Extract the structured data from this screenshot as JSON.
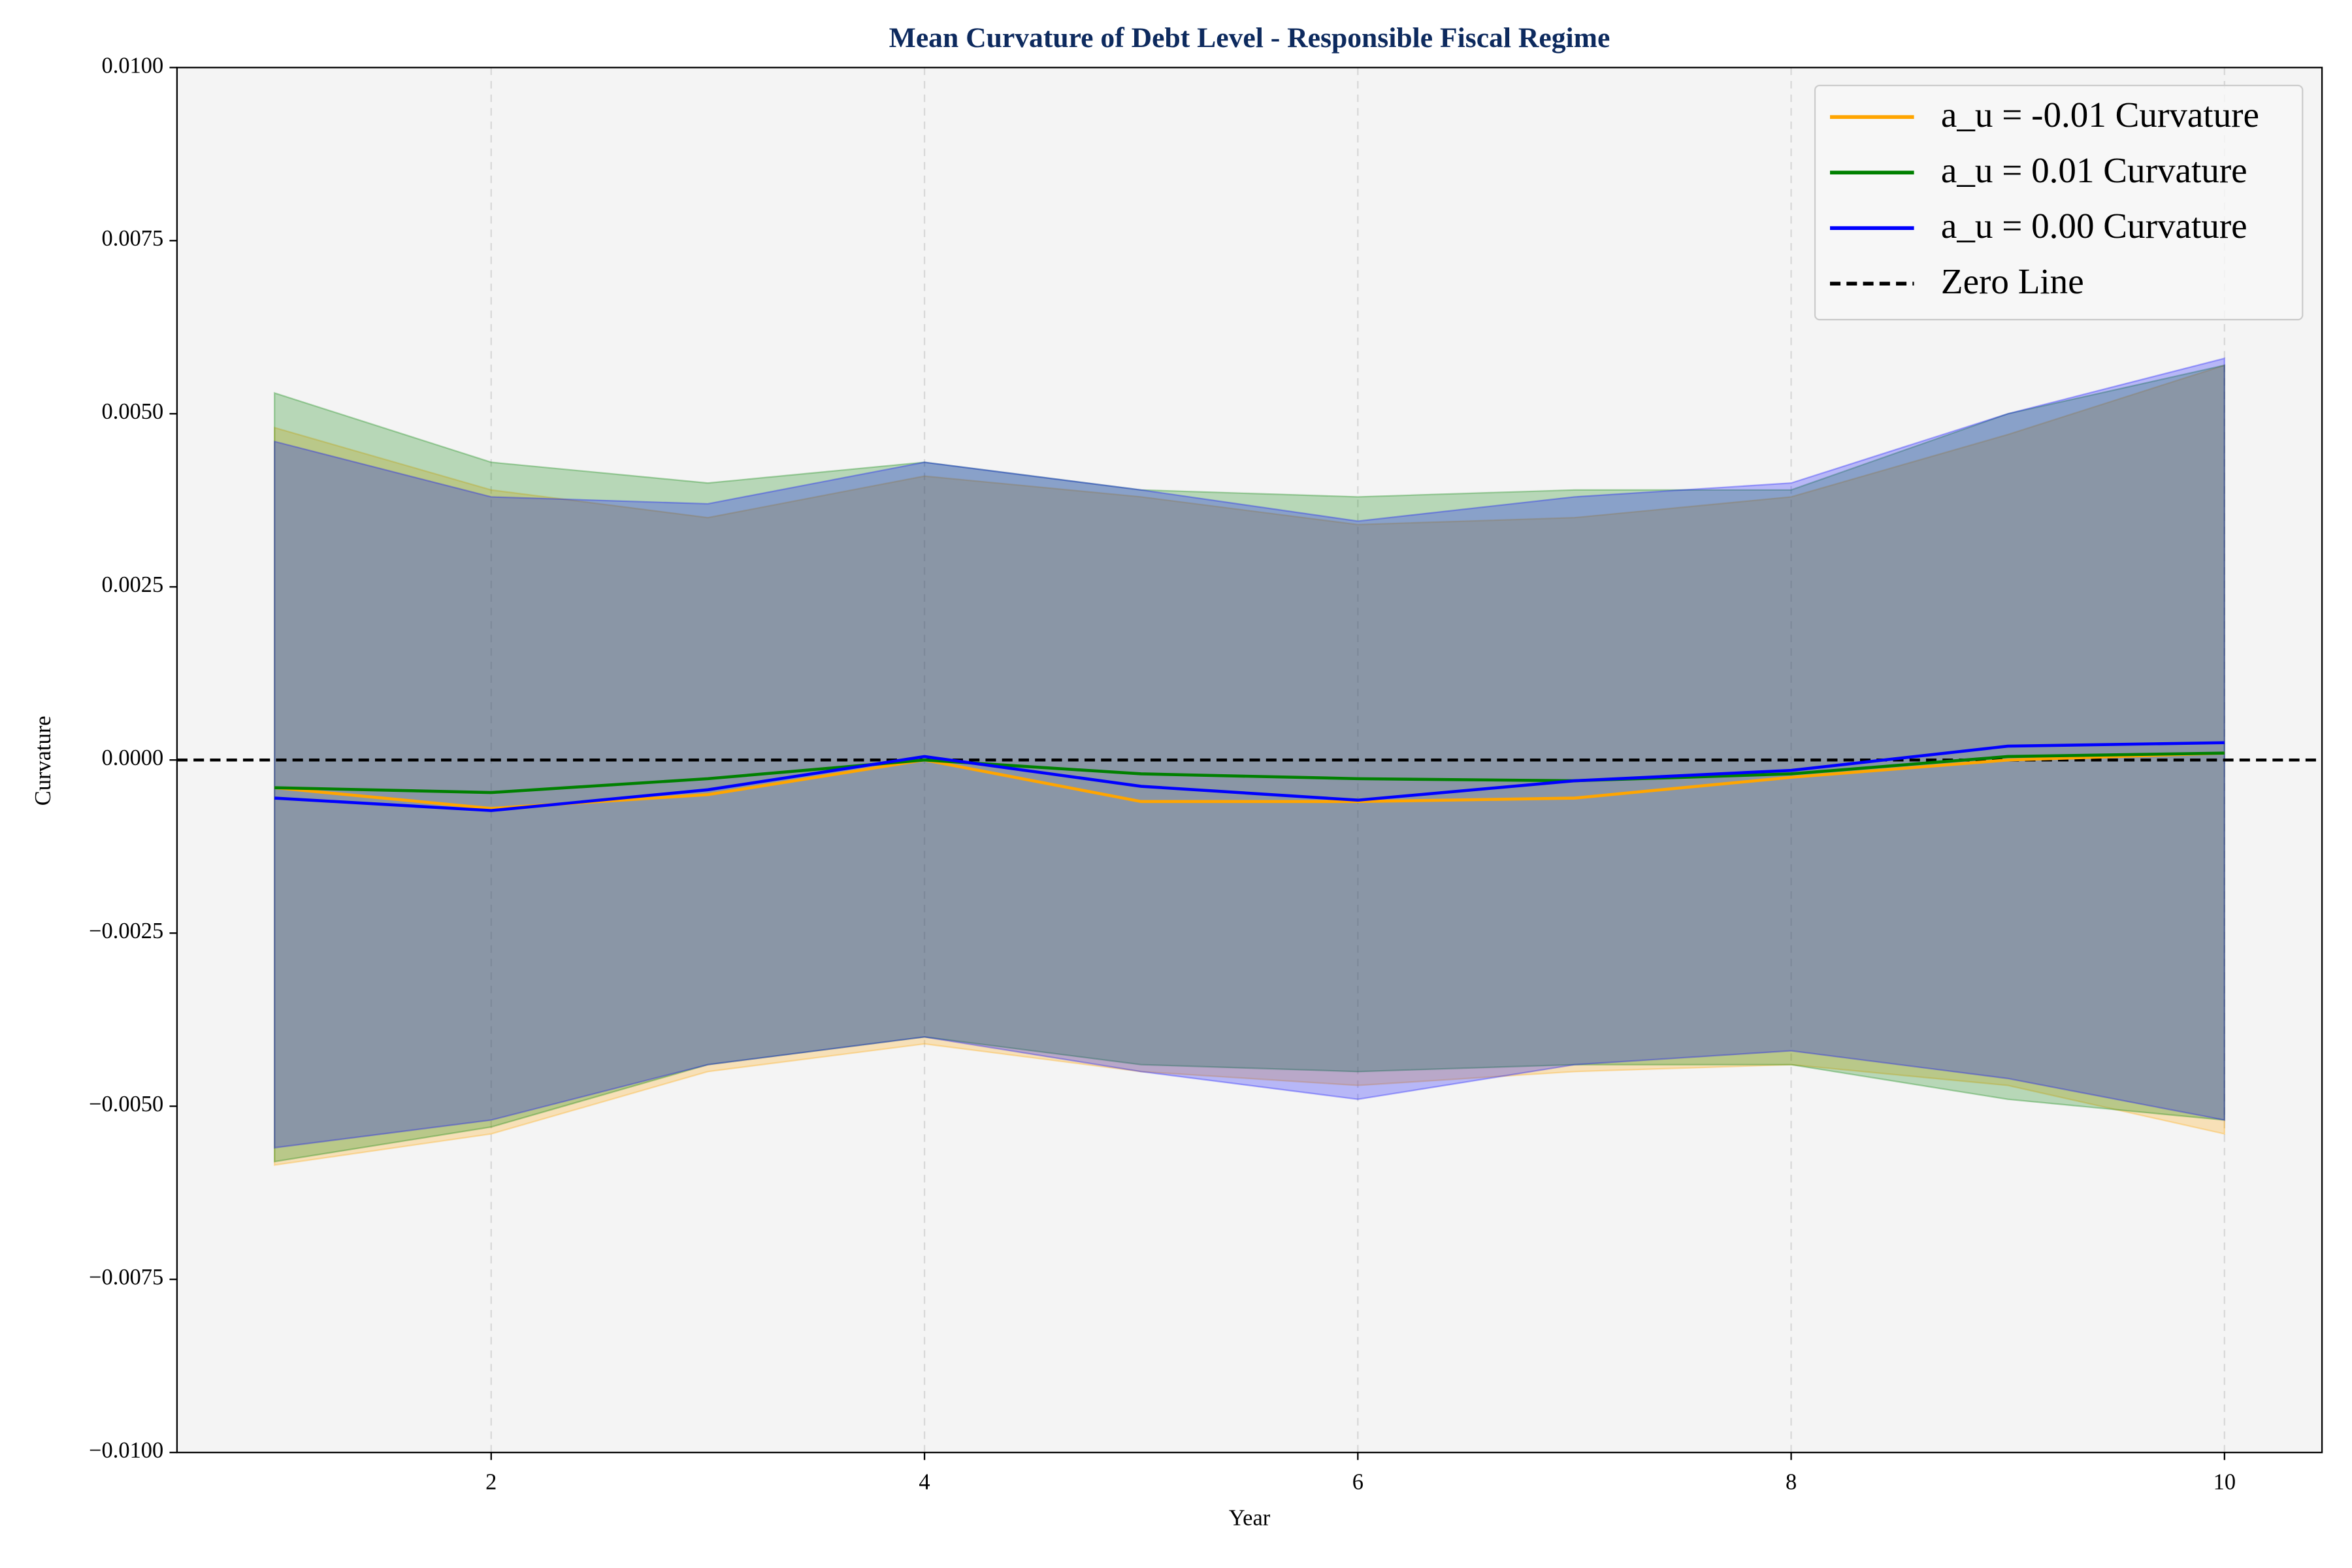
{
  "chart_data": {
    "type": "line",
    "title": "Mean Curvature of Debt Level - Responsible Fiscal Regime",
    "xlabel": "Year",
    "ylabel": "Curvature",
    "x": [
      1,
      2,
      3,
      4,
      5,
      6,
      7,
      8,
      9,
      10
    ],
    "xlim": [
      0.55,
      10.45
    ],
    "xticks": [
      2,
      4,
      6,
      8,
      10
    ],
    "ylim": [
      -0.01,
      0.01
    ],
    "yticks": [
      {
        "value": -0.01,
        "label": "−0.0100"
      },
      {
        "value": -0.0075,
        "label": "−0.0075"
      },
      {
        "value": -0.005,
        "label": "−0.0050"
      },
      {
        "value": -0.0025,
        "label": "−0.0025"
      },
      {
        "value": 0,
        "label": "0.0000"
      },
      {
        "value": 0.0025,
        "label": "0.0025"
      },
      {
        "value": 0.005,
        "label": "0.0050"
      },
      {
        "value": 0.0075,
        "label": "0.0075"
      },
      {
        "value": 0.01,
        "label": "0.0100"
      }
    ],
    "grid": "x",
    "legend": "upper right",
    "series": [
      {
        "name": "a_u = -0.01 Curvature",
        "color": "#ffa500",
        "values": [
          -0.0004,
          -0.0007,
          -0.0005,
          0.0,
          -0.0006,
          -0.0006,
          -0.00055,
          -0.00025,
          0.0,
          0.0001
        ],
        "upper": [
          0.0048,
          0.0039,
          0.0035,
          0.0041,
          0.0038,
          0.0034,
          0.0035,
          0.0038,
          0.0047,
          0.0057
        ],
        "lower": [
          -0.00585,
          -0.0054,
          -0.0045,
          -0.0041,
          -0.0045,
          -0.0047,
          -0.0045,
          -0.0044,
          -0.0047,
          -0.0054
        ]
      },
      {
        "name": "a_u = 0.01 Curvature",
        "color": "#008000",
        "values": [
          -0.0004,
          -0.00047,
          -0.00027,
          0.0,
          -0.0002,
          -0.00027,
          -0.0003,
          -0.0002,
          5e-05,
          0.0001
        ],
        "upper": [
          0.0053,
          0.0043,
          0.004,
          0.0043,
          0.0039,
          0.0038,
          0.0039,
          0.0039,
          0.005,
          0.0057
        ],
        "lower": [
          -0.0058,
          -0.0053,
          -0.0044,
          -0.004,
          -0.0044,
          -0.0045,
          -0.0044,
          -0.0044,
          -0.0049,
          -0.0052
        ]
      },
      {
        "name": "a_u = 0.00 Curvature",
        "color": "#0000ff",
        "values": [
          -0.00055,
          -0.00073,
          -0.00043,
          5e-05,
          -0.00038,
          -0.00058,
          -0.0003,
          -0.00015,
          0.0002,
          0.00025
        ],
        "upper": [
          0.0046,
          0.0038,
          0.0037,
          0.0043,
          0.0039,
          0.00345,
          0.0038,
          0.004,
          0.005,
          0.0058
        ],
        "lower": [
          -0.0056,
          -0.0052,
          -0.0044,
          -0.004,
          -0.0045,
          -0.0049,
          -0.0044,
          -0.0042,
          -0.0046,
          -0.0052
        ]
      }
    ],
    "zero_line": {
      "name": "Zero Line",
      "value": 0,
      "color": "#000000"
    }
  }
}
